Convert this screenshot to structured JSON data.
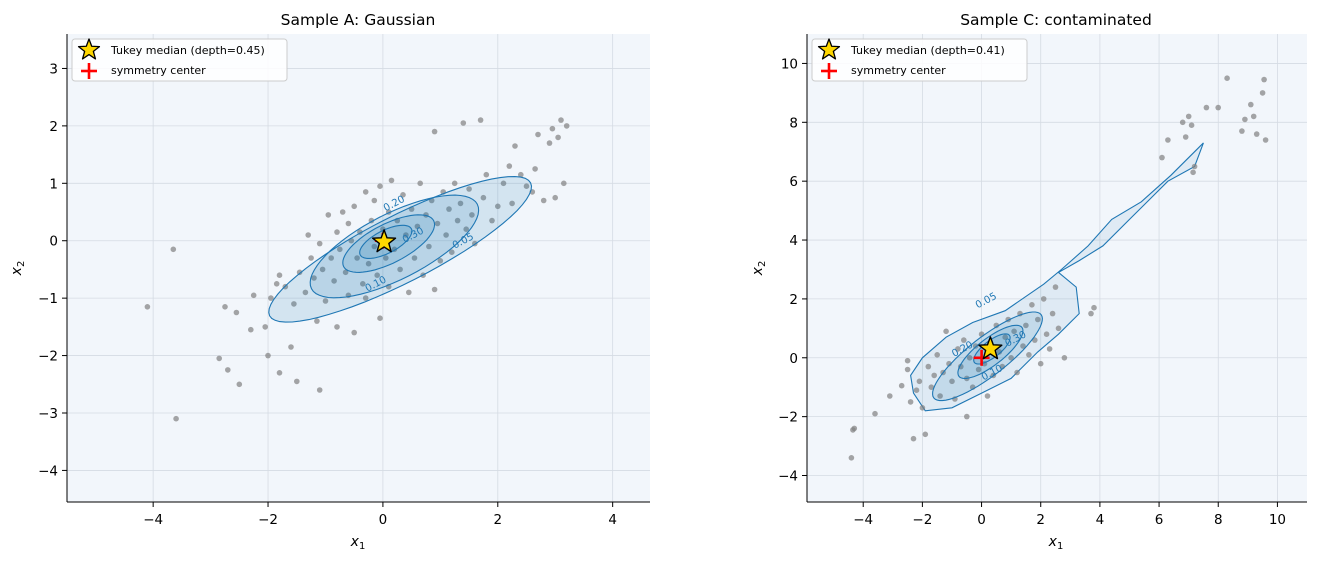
{
  "colors": {
    "axes_background": "#f2f6fb",
    "contour_line": "#1f77b4",
    "points": "#808080",
    "median_star": "#ffd700",
    "symmetry_center": "#ff0000"
  },
  "chart_data": [
    {
      "type": "scatter",
      "title": "Sample A: Gaussian",
      "xlabel": "x",
      "xlabel_sub": "1",
      "ylabel": "x",
      "ylabel_sub": "2",
      "xlim": [
        -5.5,
        4.65
      ],
      "ylim": [
        -4.55,
        3.6
      ],
      "xticks": [
        -4,
        -2,
        0,
        2,
        4
      ],
      "yticks": [
        -4,
        -3,
        -2,
        -1,
        0,
        1,
        2,
        3
      ],
      "grid": true,
      "legend_position": "top-left",
      "legend": [
        {
          "marker": "star-icon",
          "label": "Tukey median (depth=0.45)"
        },
        {
          "marker": "plus-icon",
          "label": "symmetry center"
        }
      ],
      "tukey_median": {
        "x": 0.02,
        "y": -0.02,
        "depth": 0.45
      },
      "symmetry_center": {
        "x": 0.0,
        "y": 0.0
      },
      "contours": [
        {
          "level": 0.05,
          "center": [
            0.3,
            -0.15
          ],
          "rx": 2.55,
          "ry": 0.58,
          "angle": 27
        },
        {
          "level": 0.1,
          "center": [
            0.2,
            -0.1
          ],
          "rx": 1.62,
          "ry": 0.57,
          "angle": 27
        },
        {
          "level": 0.2,
          "center": [
            0.1,
            -0.05
          ],
          "rx": 0.88,
          "ry": 0.34,
          "angle": 27
        },
        {
          "level": 0.3,
          "center": [
            0.05,
            -0.02
          ],
          "rx": 0.5,
          "ry": 0.2,
          "angle": 27
        }
      ],
      "contour_labels": [
        {
          "text": "0.05",
          "x": 1.42,
          "y": -0.05
        },
        {
          "text": "0.10",
          "x": -0.1,
          "y": -0.8
        },
        {
          "text": "0.20",
          "x": 0.22,
          "y": 0.6
        },
        {
          "text": "0.30",
          "x": 0.55,
          "y": 0.05
        }
      ],
      "points": [
        [
          -4.1,
          -1.15
        ],
        [
          -3.65,
          -0.15
        ],
        [
          -3.6,
          -3.1
        ],
        [
          -2.85,
          -2.05
        ],
        [
          -2.7,
          -2.25
        ],
        [
          -2.5,
          -2.5
        ],
        [
          -2.75,
          -1.15
        ],
        [
          -2.55,
          -1.25
        ],
        [
          -2.3,
          -1.55
        ],
        [
          -2.25,
          -0.95
        ],
        [
          -2.05,
          -1.5
        ],
        [
          -2.0,
          -2.0
        ],
        [
          -1.95,
          -1.0
        ],
        [
          -1.85,
          -0.75
        ],
        [
          -1.8,
          -2.3
        ],
        [
          -1.8,
          -0.6
        ],
        [
          -1.7,
          -0.8
        ],
        [
          -1.6,
          -1.85
        ],
        [
          -1.55,
          -1.1
        ],
        [
          -1.5,
          -2.45
        ],
        [
          -1.45,
          -0.55
        ],
        [
          -1.35,
          -0.9
        ],
        [
          -1.3,
          0.1
        ],
        [
          -1.25,
          -0.3
        ],
        [
          -1.2,
          -0.65
        ],
        [
          -1.15,
          -1.4
        ],
        [
          -1.1,
          -2.6
        ],
        [
          -1.1,
          -0.05
        ],
        [
          -1.05,
          -0.5
        ],
        [
          -1.0,
          -1.05
        ],
        [
          -0.95,
          0.45
        ],
        [
          -0.9,
          -0.3
        ],
        [
          -0.85,
          -0.7
        ],
        [
          -0.8,
          0.15
        ],
        [
          -0.8,
          -1.5
        ],
        [
          -0.75,
          -0.15
        ],
        [
          -0.7,
          0.5
        ],
        [
          -0.65,
          -0.55
        ],
        [
          -0.6,
          -0.95
        ],
        [
          -0.6,
          0.3
        ],
        [
          -0.55,
          0.0
        ],
        [
          -0.5,
          -1.6
        ],
        [
          -0.5,
          0.6
        ],
        [
          -0.45,
          -0.3
        ],
        [
          -0.4,
          0.15
        ],
        [
          -0.35,
          -0.75
        ],
        [
          -0.3,
          0.85
        ],
        [
          -0.3,
          -1.0
        ],
        [
          -0.25,
          -0.4
        ],
        [
          -0.2,
          0.35
        ],
        [
          -0.15,
          -0.1
        ],
        [
          -0.15,
          0.7
        ],
        [
          -0.1,
          -0.6
        ],
        [
          -0.05,
          -1.35
        ],
        [
          -0.05,
          0.95
        ],
        [
          0.0,
          0.2
        ],
        [
          0.05,
          -0.3
        ],
        [
          0.1,
          0.5
        ],
        [
          0.1,
          -0.8
        ],
        [
          0.15,
          1.05
        ],
        [
          0.2,
          -0.15
        ],
        [
          0.25,
          0.35
        ],
        [
          0.3,
          -0.5
        ],
        [
          0.35,
          0.8
        ],
        [
          0.4,
          0.1
        ],
        [
          0.45,
          -0.9
        ],
        [
          0.5,
          0.55
        ],
        [
          0.55,
          -0.3
        ],
        [
          0.6,
          0.25
        ],
        [
          0.65,
          1.0
        ],
        [
          0.7,
          -0.6
        ],
        [
          0.75,
          0.45
        ],
        [
          0.8,
          -0.1
        ],
        [
          0.85,
          0.7
        ],
        [
          0.9,
          1.9
        ],
        [
          0.9,
          -0.85
        ],
        [
          0.95,
          0.3
        ],
        [
          1.0,
          -0.35
        ],
        [
          1.05,
          0.85
        ],
        [
          1.1,
          0.1
        ],
        [
          1.15,
          0.55
        ],
        [
          1.2,
          -0.2
        ],
        [
          1.25,
          1.0
        ],
        [
          1.3,
          0.35
        ],
        [
          1.35,
          0.65
        ],
        [
          1.4,
          2.05
        ],
        [
          1.45,
          0.2
        ],
        [
          1.5,
          0.9
        ],
        [
          1.55,
          0.45
        ],
        [
          1.6,
          -0.05
        ],
        [
          1.7,
          2.1
        ],
        [
          1.75,
          0.75
        ],
        [
          1.8,
          1.15
        ],
        [
          1.9,
          0.35
        ],
        [
          2.0,
          0.6
        ],
        [
          2.1,
          1.0
        ],
        [
          2.2,
          1.3
        ],
        [
          2.25,
          0.65
        ],
        [
          2.3,
          1.65
        ],
        [
          2.4,
          1.15
        ],
        [
          2.5,
          0.95
        ],
        [
          2.6,
          0.85
        ],
        [
          2.65,
          1.25
        ],
        [
          2.7,
          1.85
        ],
        [
          2.8,
          0.7
        ],
        [
          2.9,
          1.7
        ],
        [
          2.95,
          1.95
        ],
        [
          3.0,
          0.75
        ],
        [
          3.05,
          1.8
        ],
        [
          3.1,
          2.1
        ],
        [
          3.15,
          1.0
        ],
        [
          3.2,
          2.0
        ]
      ]
    },
    {
      "type": "scatter",
      "title": "Sample C: contaminated",
      "xlabel": "x",
      "xlabel_sub": "1",
      "ylabel": "x",
      "ylabel_sub": "2",
      "xlim": [
        -5.9,
        11.0
      ],
      "ylim": [
        -4.9,
        11.0
      ],
      "xticks": [
        -4,
        -2,
        0,
        2,
        4,
        6,
        8,
        10
      ],
      "yticks": [
        -4,
        -2,
        0,
        2,
        4,
        6,
        8,
        10
      ],
      "grid": true,
      "legend_position": "top-left",
      "legend": [
        {
          "marker": "star-icon",
          "label": "Tukey median (depth=0.41)"
        },
        {
          "marker": "plus-icon",
          "label": "symmetry center"
        }
      ],
      "tukey_median": {
        "x": 0.3,
        "y": 0.3,
        "depth": 0.41
      },
      "symmetry_center": {
        "x": 0.0,
        "y": 0.0
      },
      "outer_region": [
        [
          -1.9,
          -1.8
        ],
        [
          -2.3,
          -1.2
        ],
        [
          -2.4,
          -0.6
        ],
        [
          -2.0,
          0.0
        ],
        [
          -1.2,
          0.7
        ],
        [
          -0.3,
          1.2
        ],
        [
          0.8,
          1.6
        ],
        [
          2.1,
          2.5
        ],
        [
          2.7,
          3.0
        ],
        [
          3.6,
          3.8
        ],
        [
          4.4,
          4.7
        ],
        [
          5.4,
          5.3
        ],
        [
          6.4,
          6.2
        ],
        [
          7.3,
          7.1
        ],
        [
          7.5,
          7.3
        ],
        [
          7.2,
          6.5
        ],
        [
          6.3,
          6.0
        ],
        [
          5.0,
          4.7
        ],
        [
          4.1,
          3.8
        ],
        [
          3.3,
          3.3
        ],
        [
          2.6,
          2.9
        ],
        [
          3.2,
          2.4
        ],
        [
          3.3,
          1.5
        ],
        [
          2.6,
          0.8
        ],
        [
          1.9,
          0.2
        ],
        [
          1.0,
          -0.7
        ],
        [
          0.0,
          -1.2
        ],
        [
          -1.0,
          -1.7
        ]
      ],
      "contours": [
        {
          "level": 0.1,
          "center": [
            0.2,
            0.05
          ],
          "rx": 2.3,
          "ry": 0.65,
          "angle": 38
        },
        {
          "level": 0.2,
          "center": [
            0.3,
            0.2
          ],
          "rx": 1.35,
          "ry": 0.45,
          "angle": 38
        },
        {
          "level": 0.3,
          "center": [
            0.35,
            0.3
          ],
          "rx": 0.75,
          "ry": 0.28,
          "angle": 38
        }
      ],
      "contour_labels": [
        {
          "text": "0.05",
          "x": 0.2,
          "y": 1.85
        },
        {
          "text": "0.10",
          "x": 0.4,
          "y": -0.6
        },
        {
          "text": "0.20",
          "x": -0.6,
          "y": 0.2
        },
        {
          "text": "0.30",
          "x": 1.2,
          "y": 0.55
        }
      ],
      "points": [
        [
          -4.4,
          -3.4
        ],
        [
          -4.3,
          -2.4
        ],
        [
          -4.35,
          -2.45
        ],
        [
          -3.6,
          -1.9
        ],
        [
          -3.1,
          -1.3
        ],
        [
          -2.7,
          -0.95
        ],
        [
          -2.5,
          -0.1
        ],
        [
          -2.5,
          -0.4
        ],
        [
          -2.4,
          -1.5
        ],
        [
          -2.3,
          -2.75
        ],
        [
          -2.2,
          -1.1
        ],
        [
          -2.1,
          -0.8
        ],
        [
          -2.0,
          -1.7
        ],
        [
          -1.9,
          -2.6
        ],
        [
          -1.8,
          -0.3
        ],
        [
          -1.7,
          -1.0
        ],
        [
          -1.6,
          -0.6
        ],
        [
          -1.5,
          0.1
        ],
        [
          -1.4,
          -1.3
        ],
        [
          -1.3,
          -0.5
        ],
        [
          -1.2,
          0.9
        ],
        [
          -1.1,
          -0.2
        ],
        [
          -1.0,
          -0.8
        ],
        [
          -0.9,
          -1.4
        ],
        [
          -0.8,
          0.3
        ],
        [
          -0.7,
          -0.3
        ],
        [
          -0.6,
          0.6
        ],
        [
          -0.5,
          -2.0
        ],
        [
          -0.5,
          -0.7
        ],
        [
          -0.4,
          0.0
        ],
        [
          -0.3,
          -1.0
        ],
        [
          -0.2,
          0.4
        ],
        [
          -0.1,
          -0.4
        ],
        [
          0.0,
          0.8
        ],
        [
          0.1,
          -0.2
        ],
        [
          0.2,
          -1.3
        ],
        [
          0.3,
          0.5
        ],
        [
          0.4,
          -0.6
        ],
        [
          0.5,
          1.1
        ],
        [
          0.6,
          0.2
        ],
        [
          0.7,
          -0.3
        ],
        [
          0.8,
          0.7
        ],
        [
          0.9,
          1.3
        ],
        [
          1.0,
          0.0
        ],
        [
          1.1,
          0.9
        ],
        [
          1.2,
          -0.5
        ],
        [
          1.3,
          1.5
        ],
        [
          1.4,
          0.4
        ],
        [
          1.5,
          1.1
        ],
        [
          1.6,
          0.1
        ],
        [
          1.7,
          1.8
        ],
        [
          1.8,
          0.6
        ],
        [
          1.9,
          1.3
        ],
        [
          2.0,
          -0.2
        ],
        [
          2.1,
          2.0
        ],
        [
          2.2,
          0.8
        ],
        [
          2.3,
          0.3
        ],
        [
          2.4,
          1.5
        ],
        [
          2.5,
          2.4
        ],
        [
          2.6,
          1.0
        ],
        [
          2.8,
          0.0
        ],
        [
          3.7,
          1.5
        ],
        [
          3.8,
          1.7
        ],
        [
          6.1,
          6.8
        ],
        [
          6.3,
          7.4
        ],
        [
          6.8,
          8.0
        ],
        [
          6.9,
          7.5
        ],
        [
          7.0,
          8.2
        ],
        [
          7.1,
          7.9
        ],
        [
          7.15,
          6.3
        ],
        [
          7.2,
          6.5
        ],
        [
          7.6,
          8.5
        ],
        [
          8.0,
          8.5
        ],
        [
          8.3,
          9.5
        ],
        [
          8.8,
          7.7
        ],
        [
          8.9,
          8.1
        ],
        [
          9.1,
          8.6
        ],
        [
          9.2,
          8.2
        ],
        [
          9.3,
          7.6
        ],
        [
          9.5,
          9.0
        ],
        [
          9.55,
          9.45
        ],
        [
          9.6,
          7.4
        ]
      ]
    }
  ]
}
